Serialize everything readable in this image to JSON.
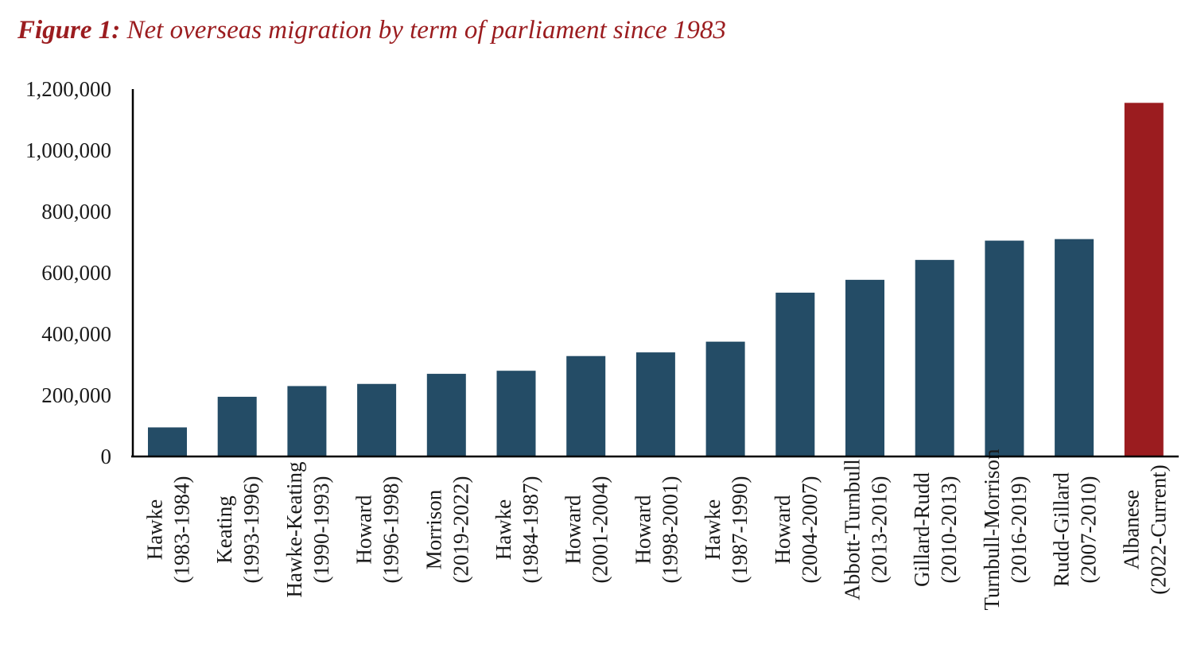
{
  "title": {
    "prefix": "Figure 1:",
    "text": " Net overseas migration by term of parliament since 1983"
  },
  "colors": {
    "default_bar": "#244c66",
    "highlight_bar": "#9b1c1f",
    "axis": "#000000",
    "title": "#9b1c1f"
  },
  "chart_data": {
    "type": "bar",
    "title": "Figure 1: Net overseas migration by term of parliament since 1983",
    "xlabel": "",
    "ylabel": "",
    "ylim": [
      0,
      1200000
    ],
    "yticks": [
      0,
      200000,
      400000,
      600000,
      800000,
      1000000,
      1200000
    ],
    "ytick_labels": [
      "0",
      "200,000",
      "400,000",
      "600,000",
      "800,000",
      "1,000,000",
      "1,200,000"
    ],
    "grid": false,
    "legend": "none",
    "categories": [
      {
        "name": "Hawke",
        "term": "(1983-1984)"
      },
      {
        "name": "Keating",
        "term": "(1993-1996)"
      },
      {
        "name": "Hawke-Keating",
        "term": "(1990-1993)"
      },
      {
        "name": "Howard",
        "term": "(1996-1998)"
      },
      {
        "name": "Morrison",
        "term": "(2019-2022)"
      },
      {
        "name": "Hawke",
        "term": "(1984-1987)"
      },
      {
        "name": "Howard",
        "term": "(2001-2004)"
      },
      {
        "name": "Howard",
        "term": "(1998-2001)"
      },
      {
        "name": "Hawke",
        "term": "(1987-1990)"
      },
      {
        "name": "Howard",
        "term": "(2004-2007)"
      },
      {
        "name": "Abbott-Turnbull",
        "term": "(2013-2016)"
      },
      {
        "name": "Gillard-Rudd",
        "term": "(2010-2013)"
      },
      {
        "name": "Turnbull-Morrison",
        "term": "(2016-2019)"
      },
      {
        "name": "Rudd-Gillard",
        "term": "(2007-2010)"
      },
      {
        "name": "Albanese",
        "term": "(2022-Current)"
      }
    ],
    "values": [
      95000,
      195000,
      230000,
      237000,
      270000,
      280000,
      328000,
      340000,
      375000,
      535000,
      577000,
      642000,
      705000,
      710000,
      1155000
    ],
    "highlight_index": 14
  }
}
